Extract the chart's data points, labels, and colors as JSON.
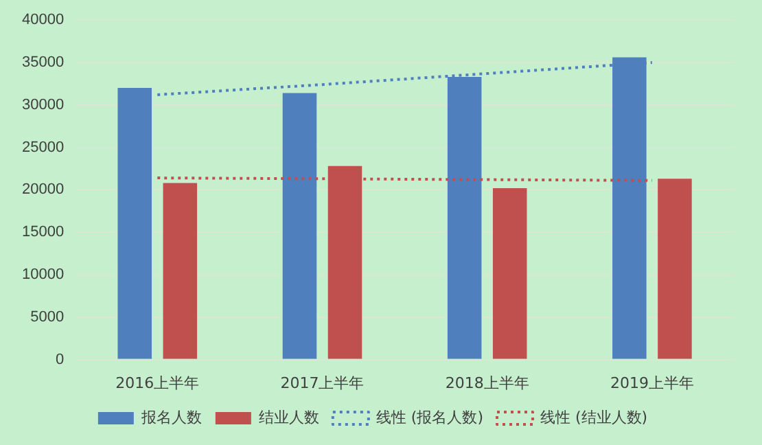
{
  "chart_data": {
    "type": "bar",
    "categories": [
      "2016上半年",
      "2017上半年",
      "2018上半年",
      "2019上半年"
    ],
    "series": [
      {
        "name": "报名人数",
        "color": "#4f7fbd",
        "values": [
          32000,
          31400,
          33300,
          35600
        ]
      },
      {
        "name": "结业人数",
        "color": "#c0504d",
        "values": [
          20800,
          22800,
          20200,
          21300
        ]
      },
      {
        "name": "线性 (报名人数)",
        "type": "line",
        "color": "#4f7fbd",
        "line_style": "dotted",
        "marker": "none",
        "values": [
          31200,
          32400,
          33700,
          35000
        ]
      },
      {
        "name": "线性 (结业人数)",
        "type": "line",
        "color": "#c0504d",
        "line_style": "dotted",
        "marker": "none",
        "values": [
          21400,
          21300,
          21200,
          21100
        ]
      }
    ],
    "ylim": [
      0,
      40000
    ],
    "yticks": [
      0,
      5000,
      10000,
      15000,
      20000,
      25000,
      30000,
      35000,
      40000
    ],
    "grid": "y",
    "legend": "bottom"
  }
}
